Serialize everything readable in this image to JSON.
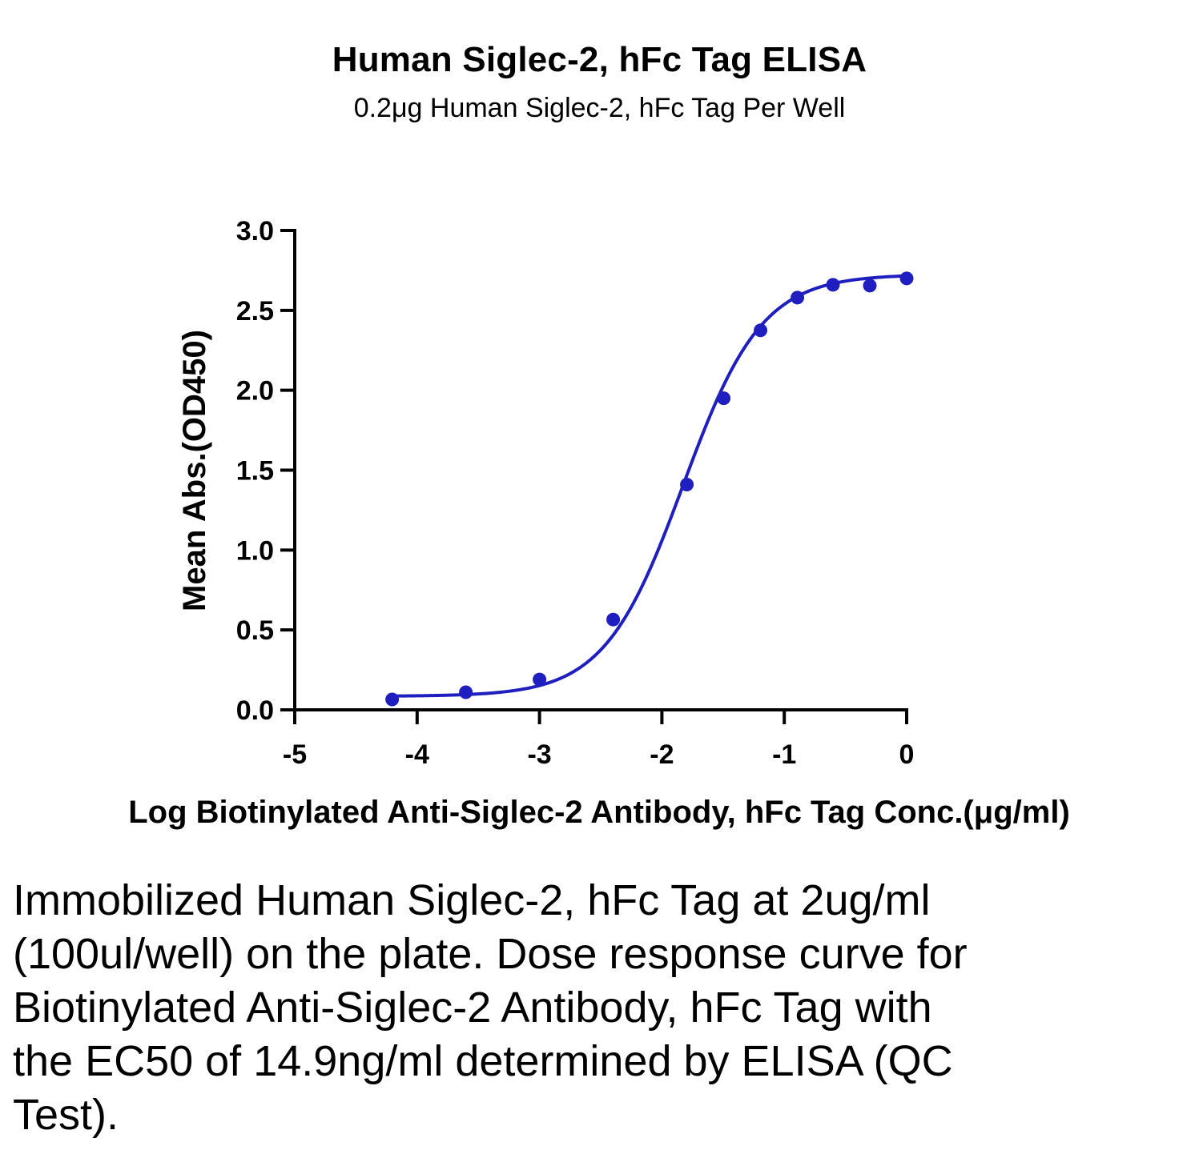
{
  "title": "Human Siglec-2, hFc Tag ELISA",
  "subtitle": "0.2μg Human Siglec-2, hFc Tag Per Well",
  "caption": "Immobilized Human Siglec-2, hFc Tag at 2ug/ml (100ul/well) on the plate. Dose response curve for Biotinylated Anti-Siglec-2 Antibody, hFc Tag with the EC50 of 14.9ng/ml determined by ELISA (QC Test).",
  "colors": {
    "series": "#1f1fbf",
    "axis": "#000000"
  },
  "chart_data": {
    "type": "scatter",
    "title": "Human Siglec-2, hFc Tag ELISA",
    "subtitle": "0.2μg Human Siglec-2, hFc Tag Per Well",
    "xlabel": "Log Biotinylated Anti-Siglec-2 Antibody, hFc Tag Conc.(μg/ml)",
    "ylabel": "Mean Abs.(OD450)",
    "xlim": [
      -5,
      0
    ],
    "ylim": [
      0,
      3.0
    ],
    "xticks": [
      "-5",
      "-4",
      "-3",
      "-2",
      "-1",
      "0"
    ],
    "yticks": [
      "0.0",
      "0.5",
      "1.0",
      "1.5",
      "2.0",
      "2.5",
      "3.0"
    ],
    "grid": false,
    "legend": "none",
    "series": [
      {
        "x": [
          -4.204,
          -3.602,
          -3.0,
          -2.398,
          -1.796,
          -1.495,
          -1.194,
          -0.893,
          -0.602,
          -0.301,
          0.0
        ],
        "y": [
          0.065,
          0.11,
          0.19,
          0.565,
          1.41,
          1.95,
          2.375,
          2.58,
          2.66,
          2.655,
          2.7
        ]
      }
    ],
    "fit_curve": {
      "model": "4PL",
      "bottom": 0.085,
      "top": 2.725,
      "log_ec50": -1.827,
      "hill_slope": 1.35,
      "x_range": [
        -4.204,
        0.0
      ]
    }
  }
}
